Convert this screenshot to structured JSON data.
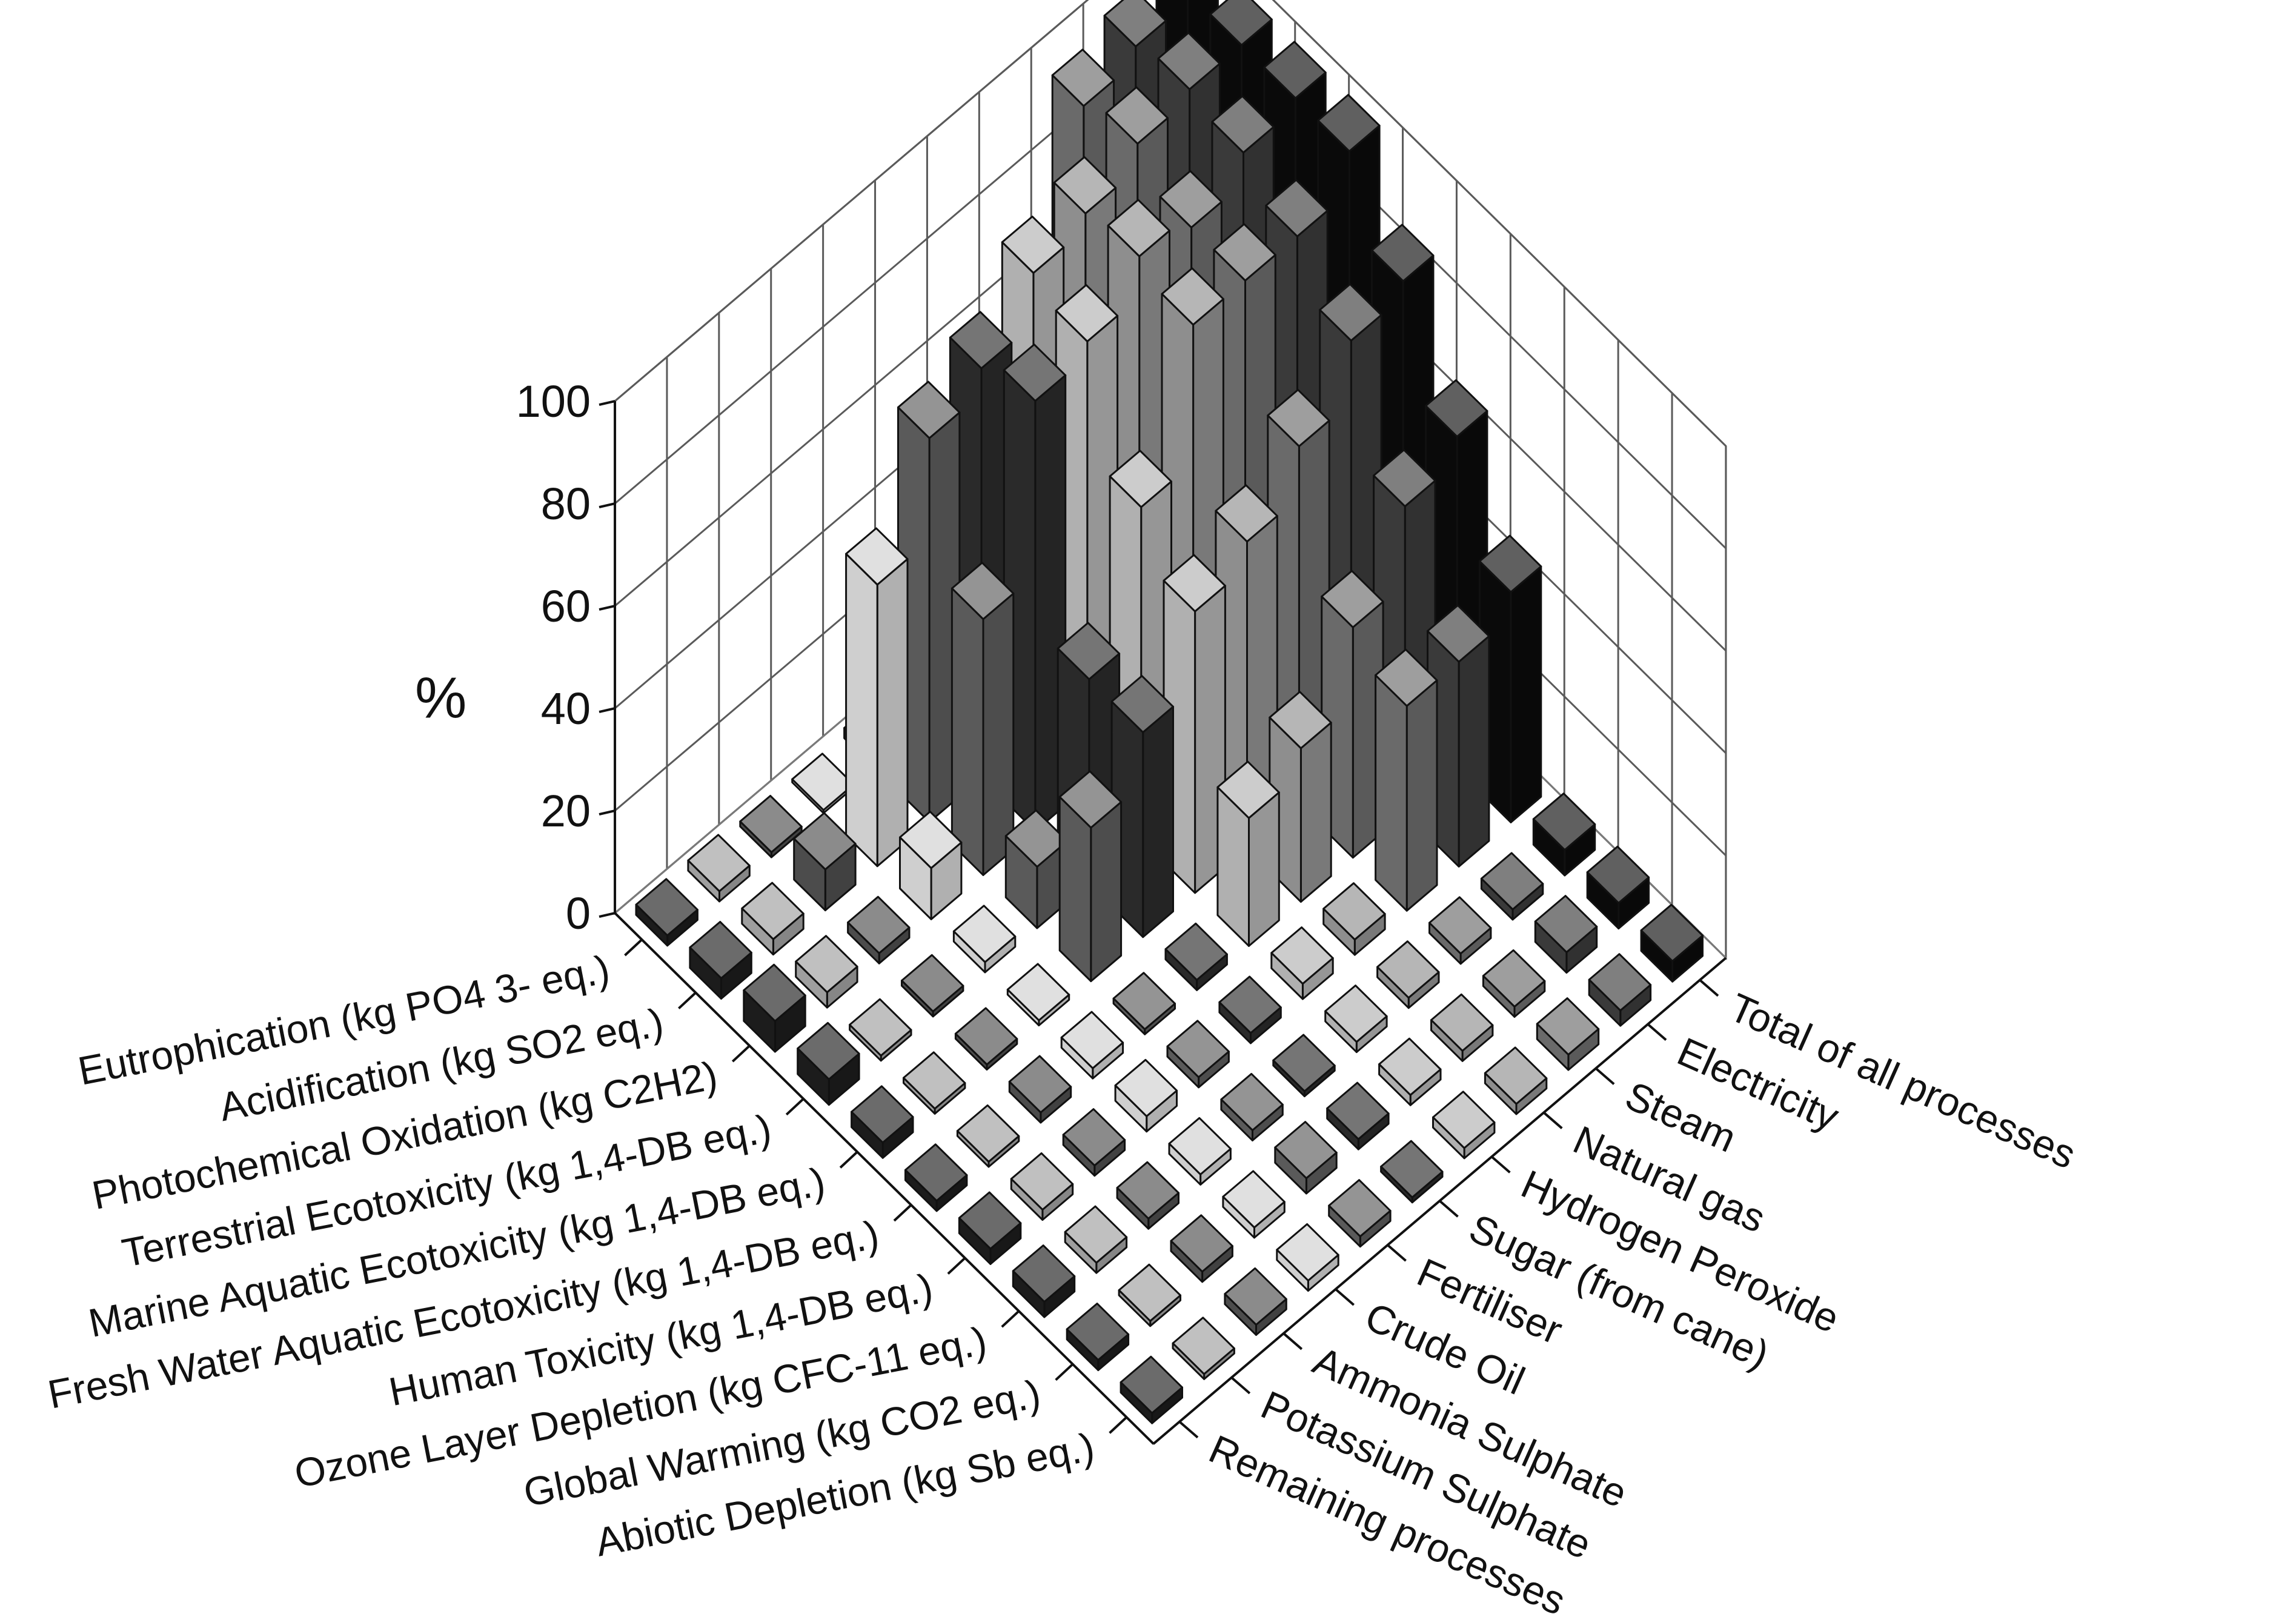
{
  "chart_data": {
    "type": "bar3d",
    "title": "",
    "zlabel": "%",
    "zlim": [
      0,
      100
    ],
    "zticks": [
      0,
      20,
      40,
      60,
      80,
      100
    ],
    "grid": true,
    "impact_categories": [
      "Eutrophication (kg PO4 3- eq.)",
      "Acidification (kg SO2 eq.)",
      "Photochemical Oxidation (kg C2H2)",
      "Terrestrial Ecotoxicity (kg 1,4-DB eq.)",
      "Marine Aquatic Ecotoxicity (kg 1,4-DB eq.)",
      "Fresh Water Aquatic Ecotoxicity (kg 1,4-DB eq.)",
      "Human Toxicity (kg 1,4-DB eq.)",
      "Ozone Layer Depletion (kg CFC-11 eq.)",
      "Global Warming (kg CO2 eq.)",
      "Abiotic Depletion (kg Sb eq.)"
    ],
    "processes": [
      "Total of all processes",
      "Electricity",
      "Steam",
      "Natural gas",
      "Hydrogen Peroxide",
      "Sugar (from cane)",
      "Fertiliser",
      "Crude Oil",
      "Ammonia Sulphate",
      "Potassium Sulphate",
      "Remaining processes"
    ],
    "series": [
      {
        "name": "Eutrophication (kg PO4 3- eq.)",
        "values": [
          100,
          98,
          95,
          40,
          20,
          3,
          2,
          0,
          1,
          2,
          2
        ]
      },
      {
        "name": "Acidification (kg SO2 eq.)",
        "values": [
          100,
          100,
          98,
          93,
          90,
          80,
          75,
          55,
          8,
          3,
          4
        ]
      },
      {
        "name": "Photochemical Oxidation (kg C2H2)",
        "values": [
          100,
          98,
          92,
          95,
          87,
          84,
          50,
          10,
          2,
          3,
          6
        ]
      },
      {
        "name": "Terrestrial Ecotoxicity (kg 1,4-DB eq.)",
        "values": [
          100,
          92,
          92,
          92,
          65,
          40,
          12,
          2,
          1,
          1,
          5
        ]
      },
      {
        "name": "Marine Aquatic Ecotoxicity (kg 1,4-DB eq.)",
        "values": [
          85,
          82,
          70,
          60,
          55,
          40,
          30,
          1,
          1,
          1,
          3
        ]
      },
      {
        "name": "Fresh Water Aquatic Ecotoxicity (kg 1,4-DB eq.)",
        "values": [
          65,
          60,
          45,
          30,
          25,
          2,
          1,
          2,
          2,
          1,
          2
        ]
      },
      {
        "name": "Human Toxicity (kg 1,4-DB eq.)",
        "values": [
          45,
          40,
          40,
          3,
          3,
          2,
          2,
          3,
          2,
          2,
          3
        ]
      },
      {
        "name": "Ozone Layer Depletion (kg CFC-11 eq.)",
        "values": [
          5,
          2,
          2,
          2,
          2,
          1,
          2,
          2,
          2,
          2,
          3
        ]
      },
      {
        "name": "Global Warming (kg CO2 eq.)",
        "values": [
          5,
          4,
          2,
          2,
          2,
          2,
          3,
          2,
          2,
          1,
          2
        ]
      },
      {
        "name": "Abiotic Depletion (kg Sb eq.)",
        "values": [
          4,
          3,
          3,
          2,
          2,
          1,
          2,
          2,
          2,
          1,
          2
        ]
      }
    ],
    "process_colors": [
      "#0a0a0a",
      "#3a3a3a",
      "#6a6a6a",
      "#8e8e8e",
      "#b0b0b0",
      "#2a2a2a",
      "#5a5a5a",
      "#cfcfcf",
      "#4c4c4c",
      "#9e9e9e",
      "#1c1c1c"
    ]
  }
}
